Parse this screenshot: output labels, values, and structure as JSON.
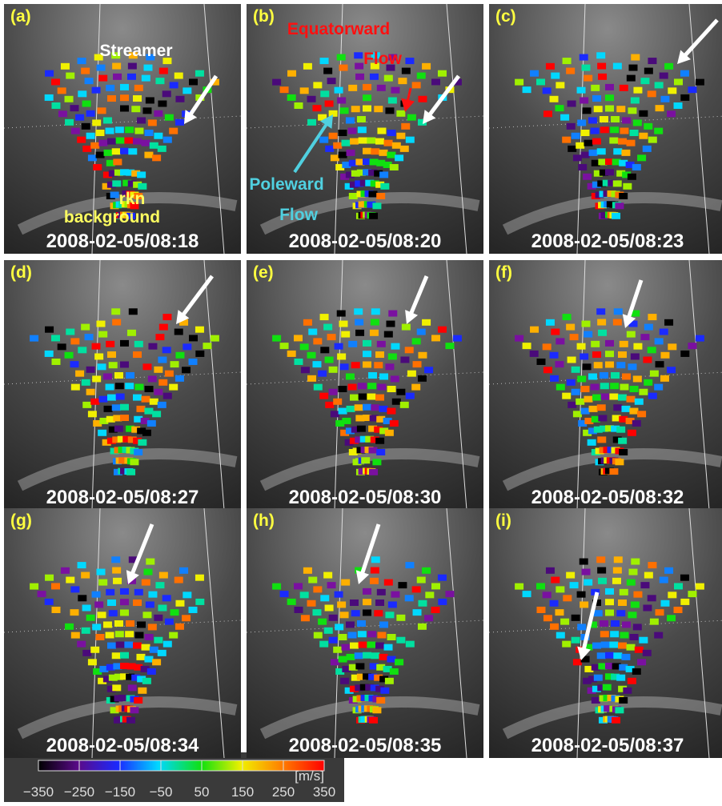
{
  "panels": [
    {
      "label": "(a)",
      "timestamp": "2008-02-05/08:18",
      "annotations": [
        "Streamer",
        "rkn",
        "background"
      ]
    },
    {
      "label": "(b)",
      "timestamp": "2008-02-05/08:20",
      "annotations": [
        "Equatorward",
        "Flow",
        "Poleward",
        "Flow"
      ]
    },
    {
      "label": "(c)",
      "timestamp": "2008-02-05/08:23",
      "annotations": []
    },
    {
      "label": "(d)",
      "timestamp": "2008-02-05/08:27",
      "annotations": []
    },
    {
      "label": "(e)",
      "timestamp": "2008-02-05/08:30",
      "annotations": []
    },
    {
      "label": "(f)",
      "timestamp": "2008-02-05/08:32",
      "annotations": []
    },
    {
      "label": "(g)",
      "timestamp": "2008-02-05/08:34",
      "annotations": []
    },
    {
      "label": "(h)",
      "timestamp": "2008-02-05/08:35",
      "annotations": []
    },
    {
      "label": "(i)",
      "timestamp": "2008-02-05/08:37",
      "annotations": []
    }
  ],
  "colorbar": {
    "unit": "[m/s]",
    "ticks": [
      "−350",
      "−250",
      "−150",
      "−50",
      "50",
      "150",
      "250",
      "350"
    ]
  }
}
